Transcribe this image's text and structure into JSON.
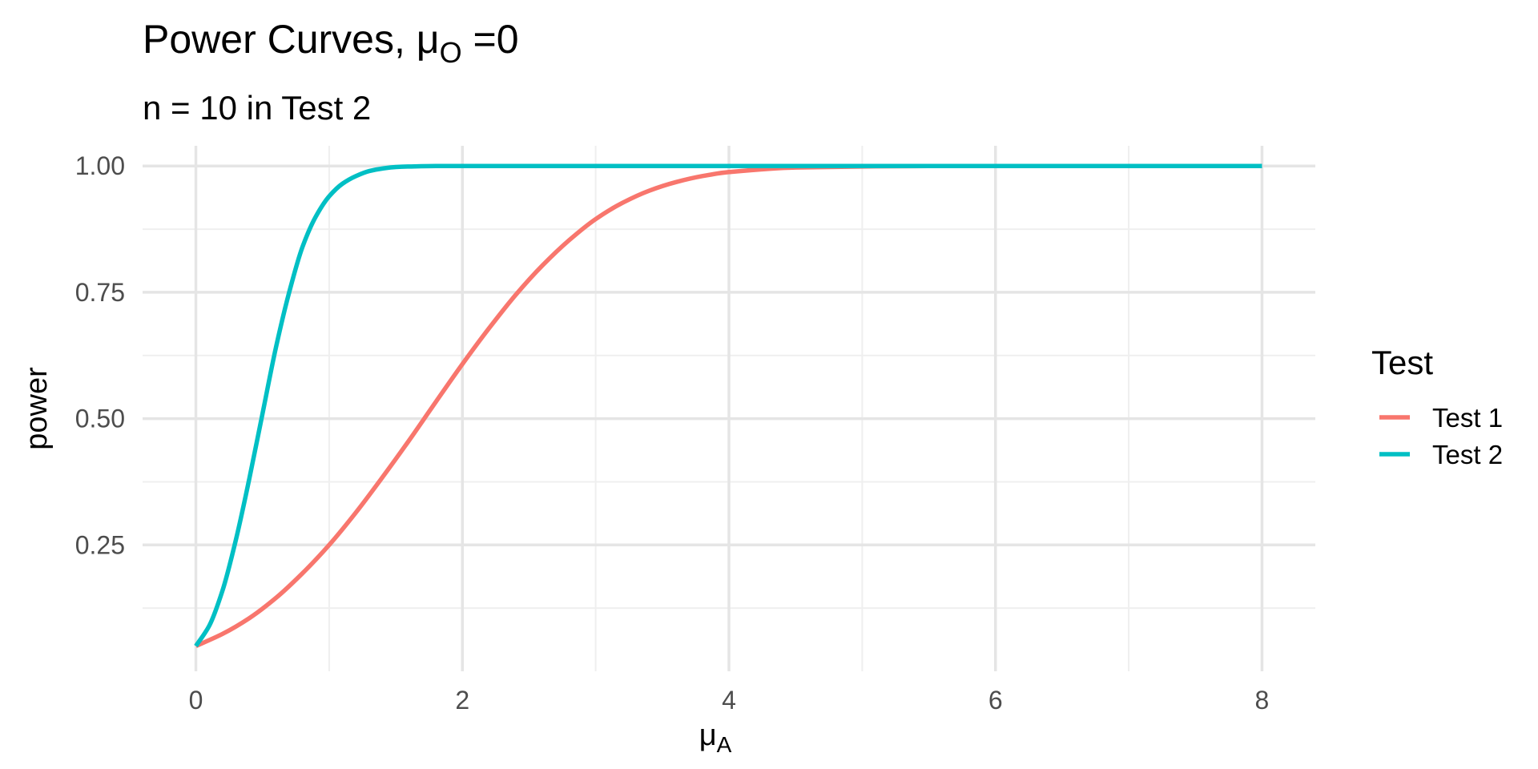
{
  "chart_data": {
    "type": "line",
    "title": "Power Curves,  μ",
    "title_subscript": "O",
    "title_suffix": " =0",
    "subtitle": "n = 10 in Test 2",
    "xlabel": "μ",
    "xlabel_subscript": "A",
    "ylabel": "power",
    "xlim": [
      -0.4,
      8.4
    ],
    "ylim": [
      0.0,
      1.04
    ],
    "x_ticks": [
      "0",
      "2",
      "4",
      "6",
      "8"
    ],
    "x_tick_values": [
      0,
      2,
      4,
      6,
      8
    ],
    "x_minor_values": [
      1,
      3,
      5,
      7
    ],
    "y_ticks": [
      "0.25",
      "0.50",
      "0.75",
      "1.00"
    ],
    "y_tick_values": [
      0.25,
      0.5,
      0.75,
      1.0
    ],
    "y_minor_values": [
      0.125,
      0.375,
      0.625,
      0.875
    ],
    "grid": true,
    "legend": {
      "title": "Test",
      "position": "right"
    },
    "series": [
      {
        "name": "Test 1",
        "color": "#F8766D",
        "x": [
          0,
          0.2,
          0.4,
          0.6,
          0.8,
          1.0,
          1.2,
          1.4,
          1.6,
          1.8,
          2.0,
          2.2,
          2.4,
          2.6,
          2.8,
          3.0,
          3.2,
          3.4,
          3.6,
          3.8,
          4.0,
          4.5,
          5.0,
          5.5,
          6.0,
          6.5,
          7.0,
          7.5,
          8.0
        ],
        "values": [
          0.05,
          0.074,
          0.105,
          0.145,
          0.194,
          0.25,
          0.314,
          0.384,
          0.457,
          0.533,
          0.608,
          0.679,
          0.745,
          0.803,
          0.853,
          0.895,
          0.927,
          0.951,
          0.968,
          0.98,
          0.988,
          0.997,
          0.999,
          1.0,
          1.0,
          1.0,
          1.0,
          1.0,
          1.0
        ]
      },
      {
        "name": "Test 2",
        "color": "#00BFC4",
        "x": [
          0,
          0.1,
          0.2,
          0.3,
          0.4,
          0.5,
          0.6,
          0.7,
          0.8,
          0.9,
          1.0,
          1.1,
          1.2,
          1.3,
          1.4,
          1.5,
          1.6,
          1.8,
          2.0,
          3.0,
          4.0,
          5.0,
          6.0,
          7.0,
          8.0
        ],
        "values": [
          0.05,
          0.09,
          0.16,
          0.26,
          0.38,
          0.51,
          0.64,
          0.75,
          0.84,
          0.9,
          0.94,
          0.965,
          0.98,
          0.99,
          0.995,
          0.998,
          0.999,
          1.0,
          1.0,
          1.0,
          1.0,
          1.0,
          1.0,
          1.0,
          1.0
        ]
      }
    ]
  }
}
